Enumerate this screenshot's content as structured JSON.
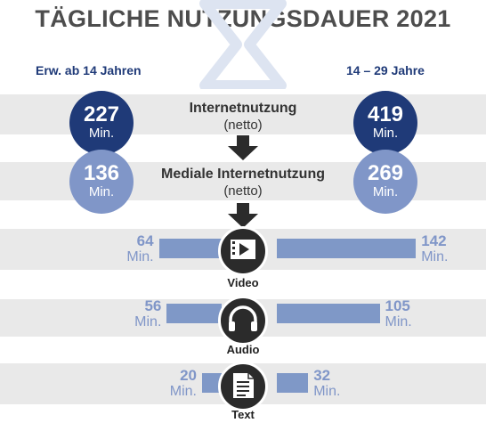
{
  "title": "TÄGLICHE NUTZUNGSDAUER 2021",
  "header": {
    "left_group": "Erw. ab 14 Jahren",
    "right_group": "14 – 29 Jahre"
  },
  "stages": [
    {
      "label": "Internetnutzung",
      "sublabel": "(netto)",
      "left_value": "227",
      "right_value": "419",
      "unit": "Min."
    },
    {
      "label": "Mediale Internetnutzung",
      "sublabel": "(netto)",
      "left_value": "136",
      "right_value": "269",
      "unit": "Min."
    }
  ],
  "icons": {
    "watermark": "hourglass-icon",
    "arrow": "arrow-down-icon"
  },
  "colors": {
    "dark_blue": "#1f3a78",
    "light_blue": "#8096c8",
    "bar": "#7f98c7",
    "band": "#e9e9e9",
    "title": "#4d4d4d"
  },
  "chart_data": {
    "type": "bar",
    "orientation": "horizontal-butterfly",
    "categories": [
      "Video",
      "Audio",
      "Text"
    ],
    "unit": "Min.",
    "icons": [
      "video-icon",
      "headphones-icon",
      "document-icon"
    ],
    "series": [
      {
        "name": "Erw. ab 14 Jahren",
        "values": [
          64,
          56,
          20
        ]
      },
      {
        "name": "14 – 29 Jahre",
        "values": [
          142,
          105,
          32
        ]
      }
    ]
  }
}
